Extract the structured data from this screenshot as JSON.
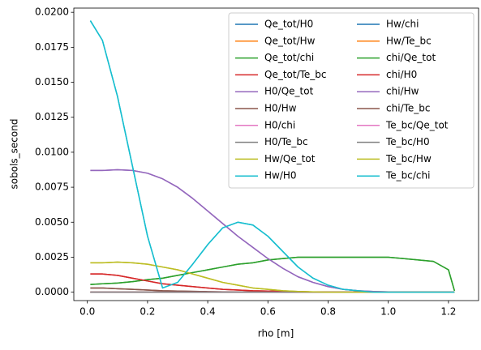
{
  "chart_data": {
    "type": "line",
    "xlabel": "rho [m]",
    "ylabel": "sobols_second",
    "x": [
      0.01,
      0.05,
      0.1,
      0.15,
      0.2,
      0.25,
      0.3,
      0.35,
      0.4,
      0.45,
      0.5,
      0.55,
      0.6,
      0.65,
      0.7,
      0.75,
      0.8,
      0.85,
      0.9,
      0.95,
      1.0,
      1.05,
      1.1,
      1.15,
      1.2,
      1.22
    ],
    "xlim": [
      -0.045,
      1.3
    ],
    "xticks": [
      {
        "value": 0,
        "label": "0.0"
      },
      0.2,
      0.4,
      0.6,
      0.8,
      {
        "value": 1,
        "label": "1.0"
      },
      1.2
    ],
    "ylim": [
      -0.0006,
      0.0203
    ],
    "yticks": [
      {
        "value": 0,
        "label": "0.0000"
      },
      {
        "value": 0.0025,
        "label": "0.0025"
      },
      {
        "value": 0.005,
        "label": "0.0050"
      },
      {
        "value": 0.0075,
        "label": "0.0075"
      },
      {
        "value": 0.01,
        "label": "0.0100"
      },
      {
        "value": 0.0125,
        "label": "0.0125"
      },
      {
        "value": 0.015,
        "label": "0.0150"
      },
      {
        "value": 0.0175,
        "label": "0.0175"
      },
      {
        "value": 0.02,
        "label": "0.0200"
      }
    ],
    "legend": "upper right",
    "legend_columns": 2,
    "series": [
      {
        "name": "Qe_tot/H0",
        "color": "#1f77b4",
        "values": [
          0,
          0,
          0,
          0,
          0,
          0,
          0,
          0,
          0,
          0,
          0,
          0,
          0,
          0,
          0,
          0,
          0,
          0,
          0,
          0,
          0,
          0,
          0,
          0,
          0,
          0
        ]
      },
      {
        "name": "Qe_tot/Hw",
        "color": "#ff7f0e",
        "values": [
          0,
          0,
          0,
          0,
          0,
          0,
          0,
          0,
          0,
          0,
          0,
          0,
          0,
          0,
          0,
          0,
          0,
          0,
          0,
          0,
          0,
          0,
          0,
          0,
          0,
          0
        ]
      },
      {
        "name": "Qe_tot/chi",
        "color": "#2ca02c",
        "values": [
          0.00055,
          0.0006,
          0.00065,
          0.00075,
          0.0009,
          0.001,
          0.0012,
          0.0014,
          0.0016,
          0.0018,
          0.002,
          0.0021,
          0.0023,
          0.0024,
          0.0025,
          0.0025,
          0.0025,
          0.0025,
          0.0025,
          0.0025,
          0.0025,
          0.0024,
          0.0023,
          0.0022,
          0.0016,
          0.0001
        ]
      },
      {
        "name": "Qe_tot/Te_bc",
        "color": "#d62728",
        "values": [
          0.0013,
          0.0013,
          0.0012,
          0.001,
          0.0008,
          0.0006,
          0.0005,
          0.0004,
          0.0003,
          0.0002,
          0.00015,
          0.0001,
          8e-05,
          6e-05,
          4e-05,
          2e-05,
          0,
          0,
          0,
          0,
          0,
          0,
          0,
          0,
          0,
          0
        ]
      },
      {
        "name": "H0/Qe_tot",
        "color": "#9467bd",
        "values": [
          0.0087,
          0.0087,
          0.00875,
          0.0087,
          0.0085,
          0.0081,
          0.0075,
          0.0067,
          0.0058,
          0.0049,
          0.004,
          0.0032,
          0.0024,
          0.0017,
          0.0011,
          0.0007,
          0.0004,
          0.0002,
          0.0001,
          5e-05,
          2e-05,
          0,
          0,
          0,
          0,
          0
        ]
      },
      {
        "name": "H0/Hw",
        "color": "#8c564b",
        "values": [
          0.0003,
          0.0003,
          0.00025,
          0.0002,
          0.00015,
          0.0001,
          8e-05,
          6e-05,
          4e-05,
          2e-05,
          0,
          0,
          0,
          0,
          0,
          0,
          0,
          0,
          0,
          0,
          0,
          0,
          0,
          0,
          0,
          0
        ]
      },
      {
        "name": "H0/chi",
        "color": "#e377c2",
        "values": [
          0,
          0,
          0,
          0,
          0,
          0,
          0,
          0,
          0,
          0,
          0,
          0,
          0,
          0,
          0,
          0,
          0,
          0,
          0,
          0,
          0,
          0,
          0,
          0,
          0,
          0
        ]
      },
      {
        "name": "H0/Te_bc",
        "color": "#7f7f7f",
        "values": [
          0,
          0,
          0,
          0,
          0,
          0,
          0,
          0,
          0,
          0,
          0,
          0,
          0,
          0,
          0,
          0,
          0,
          0,
          0,
          0,
          0,
          0,
          0,
          0,
          0,
          0
        ]
      },
      {
        "name": "Hw/Qe_tot",
        "color": "#bcbd22",
        "values": [
          0.0021,
          0.0021,
          0.00215,
          0.0021,
          0.002,
          0.0018,
          0.0016,
          0.0013,
          0.001,
          0.0007,
          0.0005,
          0.0003,
          0.0002,
          0.0001,
          5e-05,
          2e-05,
          0,
          0,
          0,
          0,
          0,
          0,
          0,
          0,
          0,
          0
        ]
      },
      {
        "name": "Hw/H0",
        "color": "#17becf",
        "values": [
          0.0194,
          0.018,
          0.014,
          0.009,
          0.004,
          0.0003,
          0.0007,
          0.002,
          0.0034,
          0.0046,
          0.005,
          0.0048,
          0.004,
          0.0029,
          0.0018,
          0.001,
          0.0005,
          0.0002,
          0.0001,
          0,
          0,
          0,
          0,
          0,
          0,
          0
        ]
      },
      {
        "name": "Hw/chi",
        "color": "#1f77b4",
        "values": [
          0,
          0,
          0,
          0,
          0,
          0,
          0,
          0,
          0,
          0,
          0,
          0,
          0,
          0,
          0,
          0,
          0,
          0,
          0,
          0,
          0,
          0,
          0,
          0,
          0,
          0
        ]
      },
      {
        "name": "Hw/Te_bc",
        "color": "#ff7f0e",
        "values": [
          0,
          0,
          0,
          0,
          0,
          0,
          0,
          0,
          0,
          0,
          0,
          0,
          0,
          0,
          0,
          0,
          0,
          0,
          0,
          0,
          0,
          0,
          0,
          0,
          0,
          0
        ]
      },
      {
        "name": "chi/Qe_tot",
        "color": "#2ca02c",
        "values": [
          0.00055,
          0.0006,
          0.00065,
          0.00075,
          0.0009,
          0.001,
          0.0012,
          0.0014,
          0.0016,
          0.0018,
          0.002,
          0.0021,
          0.0023,
          0.0024,
          0.0025,
          0.0025,
          0.0025,
          0.0025,
          0.0025,
          0.0025,
          0.0025,
          0.0024,
          0.0023,
          0.0022,
          0.0016,
          0.0001
        ]
      },
      {
        "name": "chi/H0",
        "color": "#d62728",
        "values": [
          0.0013,
          0.0013,
          0.0012,
          0.001,
          0.0008,
          0.0006,
          0.0005,
          0.0004,
          0.0003,
          0.0002,
          0.00015,
          0.0001,
          8e-05,
          6e-05,
          4e-05,
          2e-05,
          0,
          0,
          0,
          0,
          0,
          0,
          0,
          0,
          0,
          0
        ]
      },
      {
        "name": "chi/Hw",
        "color": "#9467bd",
        "values": [
          0.0087,
          0.0087,
          0.00875,
          0.0087,
          0.0085,
          0.0081,
          0.0075,
          0.0067,
          0.0058,
          0.0049,
          0.004,
          0.0032,
          0.0024,
          0.0017,
          0.0011,
          0.0007,
          0.0004,
          0.0002,
          0.0001,
          5e-05,
          2e-05,
          0,
          0,
          0,
          0,
          0
        ]
      },
      {
        "name": "chi/Te_bc",
        "color": "#8c564b",
        "values": [
          0.0003,
          0.0003,
          0.00025,
          0.0002,
          0.00015,
          0.0001,
          8e-05,
          6e-05,
          4e-05,
          2e-05,
          0,
          0,
          0,
          0,
          0,
          0,
          0,
          0,
          0,
          0,
          0,
          0,
          0,
          0,
          0,
          0
        ]
      },
      {
        "name": "Te_bc/Qe_tot",
        "color": "#e377c2",
        "values": [
          0,
          0,
          0,
          0,
          0,
          0,
          0,
          0,
          0,
          0,
          0,
          0,
          0,
          0,
          0,
          0,
          0,
          0,
          0,
          0,
          0,
          0,
          0,
          0,
          0,
          0
        ]
      },
      {
        "name": "Te_bc/H0",
        "color": "#7f7f7f",
        "values": [
          0,
          0,
          0,
          0,
          0,
          0,
          0,
          0,
          0,
          0,
          0,
          0,
          0,
          0,
          0,
          0,
          0,
          0,
          0,
          0,
          0,
          0,
          0,
          0,
          0,
          0
        ]
      },
      {
        "name": "Te_bc/Hw",
        "color": "#bcbd22",
        "values": [
          0.0021,
          0.0021,
          0.00215,
          0.0021,
          0.002,
          0.0018,
          0.0016,
          0.0013,
          0.001,
          0.0007,
          0.0005,
          0.0003,
          0.0002,
          0.0001,
          5e-05,
          2e-05,
          0,
          0,
          0,
          0,
          0,
          0,
          0,
          0,
          0,
          0
        ]
      },
      {
        "name": "Te_bc/chi",
        "color": "#17becf",
        "values": [
          0.0194,
          0.018,
          0.014,
          0.009,
          0.004,
          0.0003,
          0.0007,
          0.002,
          0.0034,
          0.0046,
          0.005,
          0.0048,
          0.004,
          0.0029,
          0.0018,
          0.001,
          0.0005,
          0.0002,
          0.0001,
          0,
          0,
          0,
          0,
          0,
          0,
          0
        ]
      }
    ]
  }
}
